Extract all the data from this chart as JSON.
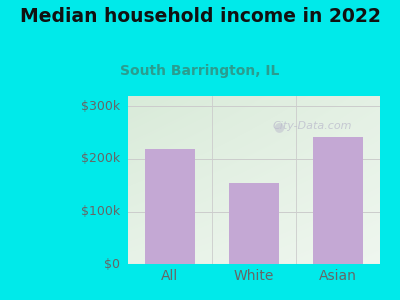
{
  "title": "Median household income in 2022",
  "subtitle": "South Barrington, IL",
  "categories": [
    "All",
    "White",
    "Asian"
  ],
  "values": [
    220000,
    155000,
    242000
  ],
  "bar_color": "#c4a8d4",
  "background_color": "#00eaea",
  "title_color": "#111111",
  "subtitle_color": "#2a9d8f",
  "tick_label_color": "#666666",
  "yticks": [
    0,
    100000,
    200000,
    300000
  ],
  "ytick_labels": [
    "$0",
    "$100k",
    "$200k",
    "$300k"
  ],
  "ylim": [
    0,
    320000
  ],
  "watermark": "City-Data.com",
  "watermark_color": "#bbbbcc",
  "grid_color": "#cccccc",
  "gradient_colors": [
    "#d4ecd4",
    "#eaf4ea",
    "#f5faf5",
    "#ffffff"
  ],
  "figsize": [
    4.0,
    3.0
  ],
  "dpi": 100,
  "title_fontsize": 13.5,
  "subtitle_fontsize": 10,
  "tick_fontsize": 9
}
